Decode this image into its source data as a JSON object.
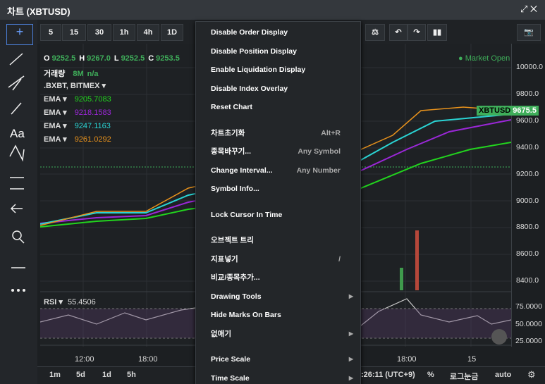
{
  "header": {
    "title": "차트 (XBTUSD)"
  },
  "toolbar": {
    "intervals": [
      "5",
      "15",
      "30",
      "1h",
      "4h",
      "1D"
    ]
  },
  "left_tools": {
    "text_tool": "Aa"
  },
  "legend": {
    "ohlc": [
      "O",
      "9252.5",
      "H",
      "9267.0",
      "L",
      "9252.5",
      "C",
      "9253.5"
    ],
    "volume": [
      "거래량",
      "8M",
      "n/a"
    ],
    "source": ".BXBT, BITMEX",
    "emas": [
      {
        "label": "EMA",
        "value": "9205.7083",
        "color": "#22d41e"
      },
      {
        "label": "EMA",
        "value": "9218.1583",
        "color": "#9b27d8"
      },
      {
        "label": "EMA",
        "value": "9247.1163",
        "color": "#2ad4d4"
      },
      {
        "label": "EMA",
        "value": "9261.0292",
        "color": "#e8921c"
      }
    ],
    "market_status": "Market Open"
  },
  "price_axis": [
    "10000.0",
    "9800.0",
    "9600.0",
    "9400.0",
    "9200.0",
    "9000.0",
    "8800.0",
    "8600.0",
    "8400.0"
  ],
  "price_tag": {
    "symbol": "XBTUSD",
    "price": "9675.5"
  },
  "rsi": {
    "label": "RSI",
    "value": "55.4506",
    "axis": [
      "75.0000",
      "50.0000",
      "25.0000"
    ]
  },
  "time_axis": [
    "12:00",
    "18:00",
    "18:00",
    "15"
  ],
  "bottom_bar": {
    "ranges": [
      "1m",
      "5d",
      "1d",
      "5h"
    ],
    "clock": ":26:11 (UTC+9)",
    "percent": "%",
    "log": "로그눈금",
    "auto": "auto"
  },
  "menu": {
    "groups": [
      [
        {
          "label": "Disable Order Display"
        },
        {
          "label": "Disable Position Display"
        },
        {
          "label": "Enable Liquidation Display"
        },
        {
          "label": "Disable Index Overlay"
        },
        {
          "label": "Reset Chart"
        }
      ],
      [
        {
          "label": "차트초기화",
          "shortcut": "Alt+R"
        },
        {
          "label": "종목바꾸기...",
          "shortcut": "Any Symbol"
        },
        {
          "label": "Change Interval...",
          "shortcut": "Any Number"
        },
        {
          "label": "Symbol Info..."
        }
      ],
      [
        {
          "label": "Lock Cursor In Time"
        }
      ],
      [
        {
          "label": "오브젝트 트리"
        },
        {
          "label": "지표넣기",
          "shortcut": "/"
        },
        {
          "label": "비교/종목추가..."
        },
        {
          "label": "Drawing Tools",
          "submenu": true
        },
        {
          "label": "Hide Marks On Bars"
        },
        {
          "label": "없애기",
          "submenu": true
        }
      ],
      [
        {
          "label": "Price Scale",
          "submenu": true
        },
        {
          "label": "Time Scale",
          "submenu": true
        }
      ]
    ]
  }
}
